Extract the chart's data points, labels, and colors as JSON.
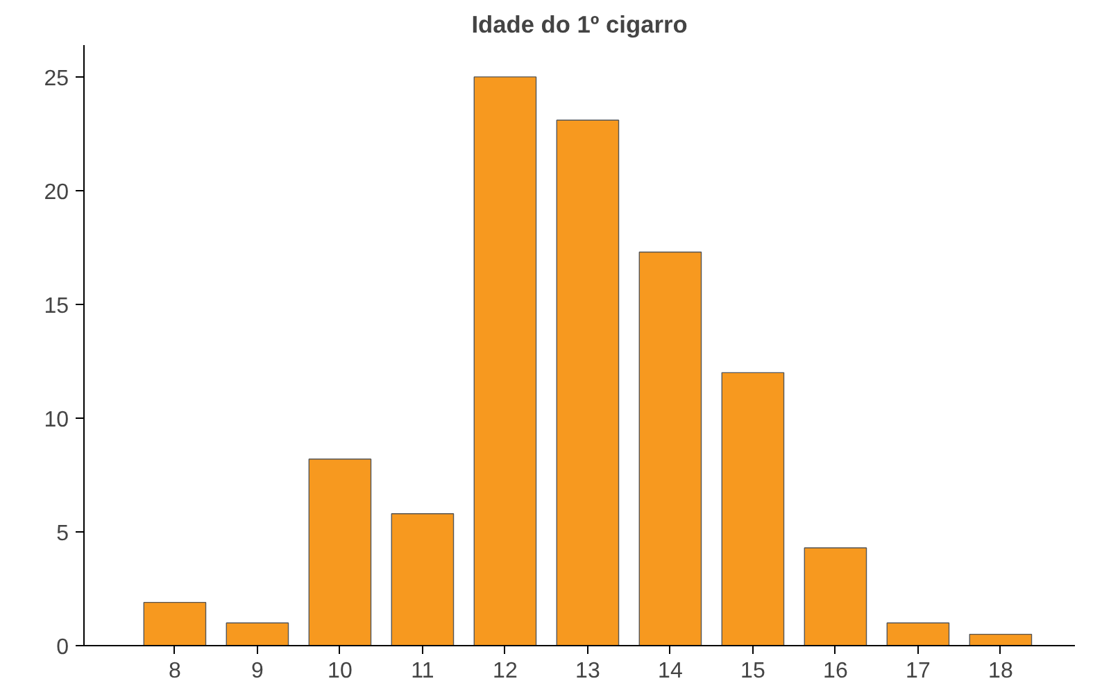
{
  "chart_data": {
    "type": "bar",
    "title": "Idade do 1º cigarro",
    "categories": [
      "8",
      "9",
      "10",
      "11",
      "12",
      "13",
      "14",
      "15",
      "16",
      "17",
      "18"
    ],
    "values": [
      1.9,
      1.0,
      8.2,
      5.8,
      25.0,
      23.1,
      17.3,
      12.0,
      4.3,
      1.0,
      0.5
    ],
    "color": "#f7991f",
    "ylim": [
      0,
      26.4
    ],
    "yticks": [
      0,
      5,
      10,
      15,
      20,
      25
    ],
    "grid": false
  }
}
